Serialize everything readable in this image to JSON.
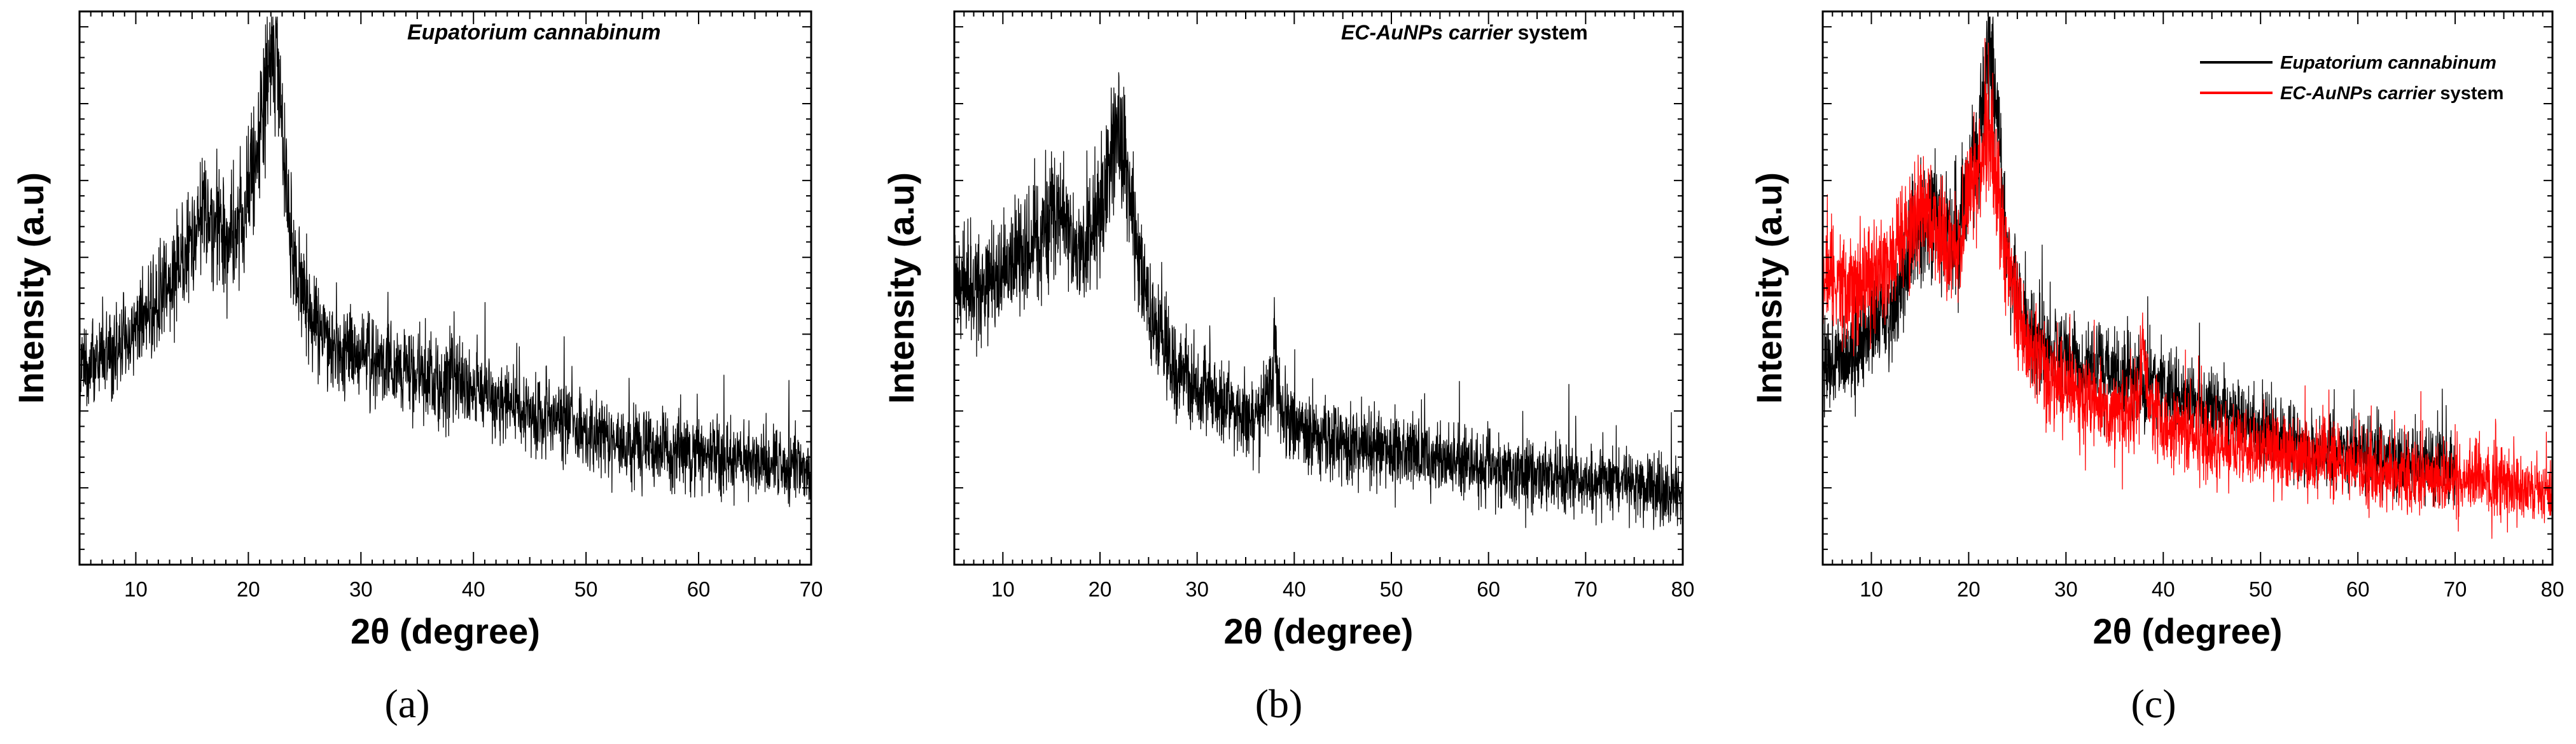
{
  "chart_data": [
    {
      "panel": "a",
      "type": "line",
      "panel_label": "(a)",
      "xlabel": "2θ (degree)",
      "ylabel": "Intensity (a.u)",
      "xlim": [
        5,
        70
      ],
      "xticks": [
        10,
        20,
        30,
        40,
        50,
        60,
        70
      ],
      "y_ticks_labeled": false,
      "grid": false,
      "annotation": "Eupatorium cannabinum",
      "series": [
        {
          "name": "Eupatorium cannabinum",
          "color": "#000000",
          "x": [
            5,
            8,
            11,
            13,
            14,
            15,
            16,
            17,
            18,
            19,
            20,
            21,
            21.5,
            22,
            22.5,
            23,
            23.5,
            24,
            25,
            26,
            28,
            30,
            33,
            36,
            40,
            45,
            50,
            55,
            60,
            65,
            70
          ],
          "y": [
            0.34,
            0.36,
            0.43,
            0.5,
            0.55,
            0.6,
            0.63,
            0.61,
            0.58,
            0.6,
            0.67,
            0.78,
            0.85,
            0.93,
            0.9,
            0.8,
            0.65,
            0.55,
            0.47,
            0.42,
            0.38,
            0.36,
            0.34,
            0.32,
            0.3,
            0.26,
            0.22,
            0.19,
            0.18,
            0.16,
            0.15
          ]
        }
      ]
    },
    {
      "panel": "b",
      "type": "line",
      "panel_label": "(b)",
      "xlabel": "2θ (degree)",
      "ylabel": "Intensity (a.u)",
      "xlim": [
        5,
        80
      ],
      "xticks": [
        10,
        20,
        30,
        40,
        50,
        60,
        70,
        80
      ],
      "y_ticks_labeled": false,
      "grid": false,
      "annotation_emphasis": "EC-AuNPs carrier",
      "annotation_rest": " system",
      "series": [
        {
          "name": "EC-AuNPs carrier system",
          "color": "#000000",
          "x": [
            5,
            7,
            10,
            12,
            14,
            15,
            16,
            17,
            18,
            19,
            20,
            21,
            22,
            22.5,
            23,
            24,
            25,
            26,
            28,
            30,
            33,
            36,
            37.5,
            38,
            38.5,
            40,
            45,
            50,
            55,
            60,
            65,
            70,
            75,
            80
          ],
          "y": [
            0.52,
            0.49,
            0.5,
            0.55,
            0.6,
            0.63,
            0.62,
            0.58,
            0.55,
            0.58,
            0.65,
            0.73,
            0.78,
            0.75,
            0.68,
            0.55,
            0.45,
            0.4,
            0.34,
            0.3,
            0.27,
            0.24,
            0.28,
            0.4,
            0.27,
            0.23,
            0.2,
            0.18,
            0.17,
            0.15,
            0.14,
            0.13,
            0.12,
            0.1
          ]
        }
      ]
    },
    {
      "panel": "c",
      "type": "line",
      "panel_label": "(c)",
      "xlabel": "2θ (degree)",
      "ylabel": "Intensity (a.u)",
      "xlim": [
        5,
        80
      ],
      "xticks": [
        10,
        20,
        30,
        40,
        50,
        60,
        70,
        80
      ],
      "y_ticks_labeled": false,
      "grid": false,
      "legend_position": "top-right",
      "series": [
        {
          "name": "Eupatorium cannabinum",
          "legend_label": "Eupatorium cannabinum",
          "color": "#000000",
          "x": [
            5,
            8,
            11,
            13,
            14,
            15,
            16,
            17,
            18,
            19,
            20,
            21,
            21.5,
            22,
            22.5,
            23,
            23.5,
            24,
            25,
            26,
            28,
            30,
            33,
            36,
            40,
            45,
            50,
            55,
            60,
            65,
            70
          ],
          "y": [
            0.34,
            0.36,
            0.43,
            0.5,
            0.55,
            0.6,
            0.63,
            0.61,
            0.58,
            0.6,
            0.67,
            0.78,
            0.85,
            0.93,
            0.9,
            0.8,
            0.65,
            0.55,
            0.47,
            0.42,
            0.38,
            0.36,
            0.34,
            0.32,
            0.3,
            0.26,
            0.22,
            0.19,
            0.18,
            0.16,
            0.15
          ]
        },
        {
          "name": "EC-AuNPs carrier system",
          "legend_label_emphasis": "EC-AuNPs carrier",
          "legend_label_rest": " system",
          "color": "#ff0000",
          "x": [
            5,
            7,
            10,
            12,
            14,
            15,
            16,
            17,
            18,
            19,
            20,
            21,
            22,
            22.5,
            23,
            24,
            25,
            26,
            28,
            30,
            33,
            36,
            37.5,
            38,
            38.5,
            40,
            45,
            50,
            55,
            60,
            65,
            70,
            75,
            80
          ],
          "y": [
            0.52,
            0.49,
            0.5,
            0.55,
            0.6,
            0.63,
            0.62,
            0.58,
            0.55,
            0.58,
            0.65,
            0.73,
            0.78,
            0.75,
            0.68,
            0.55,
            0.45,
            0.4,
            0.34,
            0.3,
            0.27,
            0.24,
            0.28,
            0.4,
            0.27,
            0.23,
            0.2,
            0.18,
            0.17,
            0.15,
            0.14,
            0.13,
            0.12,
            0.1
          ]
        }
      ]
    }
  ]
}
